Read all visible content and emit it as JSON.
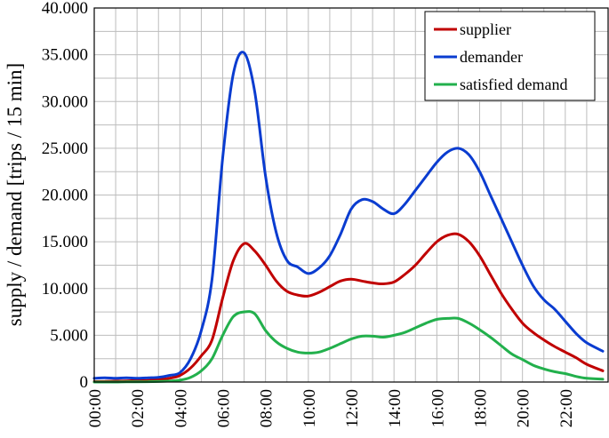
{
  "chart_data": {
    "type": "line",
    "title": "",
    "xlabel": "",
    "ylabel": "supply / demand [trips / 15 min]",
    "xlim": [
      0,
      24
    ],
    "ylim": [
      0,
      40000
    ],
    "grid": true,
    "legend_position": "top-right",
    "x_tick_labels": [
      "00:00",
      "02:00",
      "04:00",
      "06:00",
      "08:00",
      "10:00",
      "12:00",
      "14:00",
      "16:00",
      "18:00",
      "20:00",
      "22:00"
    ],
    "y_tick_labels": [
      "0",
      "5.000",
      "10.000",
      "15.000",
      "20.000",
      "25.000",
      "30.000",
      "35.000",
      "40.000"
    ],
    "x": [
      0,
      0.5,
      1,
      1.5,
      2,
      2.5,
      3,
      3.5,
      4,
      4.5,
      5,
      5.5,
      6,
      6.5,
      7,
      7.5,
      8,
      8.5,
      9,
      9.5,
      10,
      10.5,
      11,
      11.5,
      12,
      12.5,
      13,
      13.5,
      14,
      14.5,
      15,
      15.5,
      16,
      16.5,
      17,
      17.5,
      18,
      18.5,
      19,
      19.5,
      20,
      20.5,
      21,
      21.5,
      22,
      22.5,
      23,
      23.75
    ],
    "series": [
      {
        "name": "supplier",
        "color": "#c00000",
        "values": [
          50,
          80,
          100,
          120,
          150,
          180,
          250,
          400,
          700,
          1500,
          2800,
          4500,
          9000,
          13000,
          14800,
          14000,
          12500,
          10800,
          9700,
          9300,
          9200,
          9600,
          10200,
          10800,
          11000,
          10800,
          10600,
          10500,
          10700,
          11500,
          12500,
          13800,
          15000,
          15700,
          15800,
          15000,
          13500,
          11500,
          9500,
          7800,
          6300,
          5300,
          4500,
          3800,
          3200,
          2600,
          1900,
          1200
        ]
      },
      {
        "name": "demander",
        "color": "#0a3cd0",
        "values": [
          400,
          450,
          400,
          450,
          400,
          450,
          500,
          700,
          1000,
          2500,
          5500,
          11000,
          24000,
          33000,
          35200,
          31000,
          22000,
          16000,
          13000,
          12300,
          11600,
          12200,
          13500,
          15800,
          18500,
          19500,
          19300,
          18500,
          18000,
          19000,
          20500,
          22000,
          23500,
          24600,
          25000,
          24300,
          22500,
          20000,
          17500,
          15000,
          12500,
          10300,
          8800,
          7800,
          6500,
          5200,
          4200,
          3300
        ]
      },
      {
        "name": "satisfied demand",
        "color": "#22b04c",
        "values": [
          0,
          0,
          0,
          20,
          30,
          40,
          60,
          100,
          200,
          500,
          1200,
          2500,
          5000,
          7000,
          7500,
          7300,
          5500,
          4300,
          3600,
          3200,
          3100,
          3200,
          3600,
          4100,
          4600,
          4900,
          4900,
          4800,
          5000,
          5300,
          5800,
          6300,
          6700,
          6800,
          6800,
          6300,
          5600,
          4800,
          3900,
          3000,
          2400,
          1800,
          1400,
          1100,
          900,
          600,
          400,
          300
        ]
      }
    ]
  }
}
